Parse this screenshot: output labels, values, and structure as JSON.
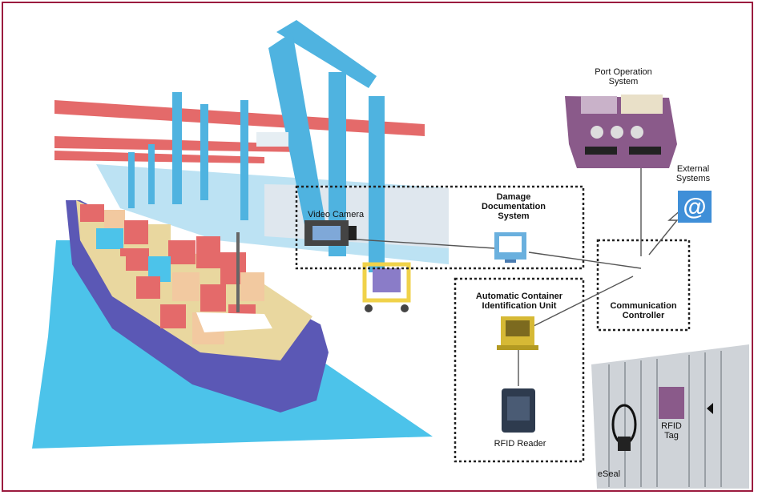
{
  "labels": {
    "port_operation_system": "Port Operation\nSystem",
    "external_systems": "External\nSystems",
    "video_camera": "Video Camera",
    "damage_documentation_system": "Damage\nDocumentation\nSystem",
    "communication_controller": "Communication\nController",
    "automatic_container_identification_unit": "Automatic Container\nIdentification Unit",
    "rfid_reader": "RFID Reader",
    "rfid_tag": "RFID\nTag",
    "eseal": "eSeal"
  },
  "colors": {
    "frame_border": "#9b1b3f",
    "crane_blue": "#4fb3e0",
    "crane_red": "#e46a6a",
    "water": "#4cc3ea",
    "hull": "#5b58b5",
    "gray_line": "#888888"
  },
  "icons": {
    "port_operation_system": "control-console-icon",
    "external_systems": "at-sign-icon",
    "video_camera": "video-camera-icon",
    "damage_documentation_system": "monitor-icon",
    "automatic_container_identification_unit": "computer-terminal-icon",
    "rfid_reader": "rfid-reader-icon",
    "container": "shipping-container-icon"
  }
}
